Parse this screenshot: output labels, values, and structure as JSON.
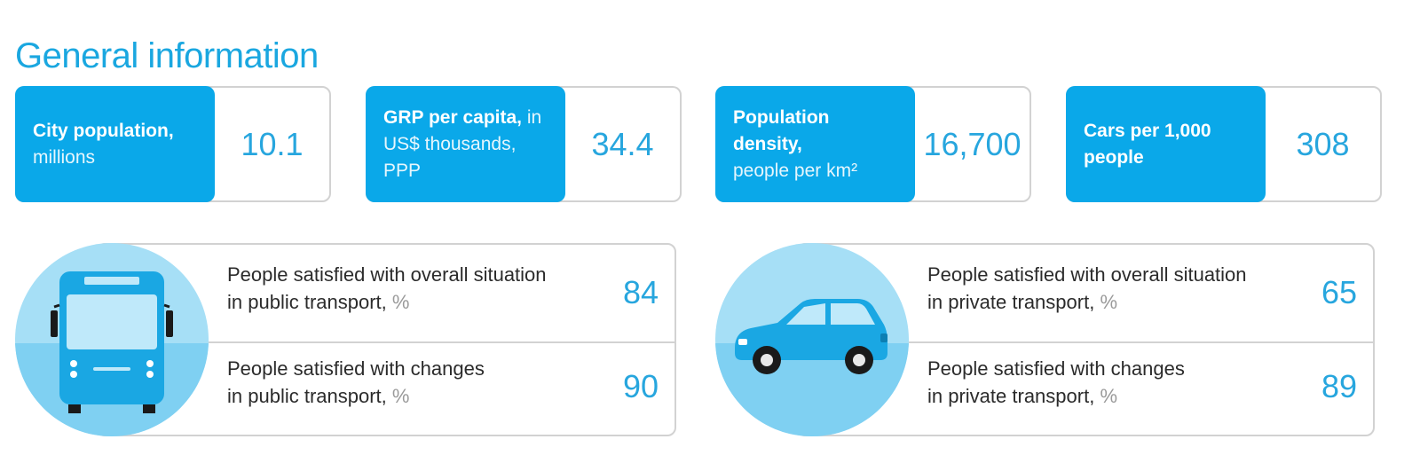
{
  "title": "General information",
  "cards": [
    {
      "label_bold": "City population,",
      "label_sub": "millions",
      "value": "10.1"
    },
    {
      "label_bold": "GRP per capita,",
      "label_sub": "in US$ thousands, PPP",
      "value": "34.4"
    },
    {
      "label_bold": "Population density,",
      "label_sub": "people per km²",
      "value": "16,700"
    },
    {
      "label_bold": "Cars per 1,000 people",
      "label_sub": "",
      "value": "308"
    }
  ],
  "public_transport": {
    "icon": "bus-icon",
    "overall": {
      "line1": "People satisfied with overall situation",
      "line2": "in public transport,",
      "unit": "%",
      "value": "84"
    },
    "changes": {
      "line1": "People satisfied with changes",
      "line2": "in public transport,",
      "unit": "%",
      "value": "90"
    }
  },
  "private_transport": {
    "icon": "car-icon",
    "overall": {
      "line1": "People satisfied with overall situation",
      "line2": "in private transport,",
      "unit": "%",
      "value": "65"
    },
    "changes": {
      "line1": "People satisfied with changes",
      "line2": "in private transport,",
      "unit": "%",
      "value": "89"
    }
  },
  "colors": {
    "accent": "#0aa8e9",
    "value_text": "#27a6de",
    "circle_light": "#a6dff6",
    "circle_mid": "#7fd0f2"
  }
}
